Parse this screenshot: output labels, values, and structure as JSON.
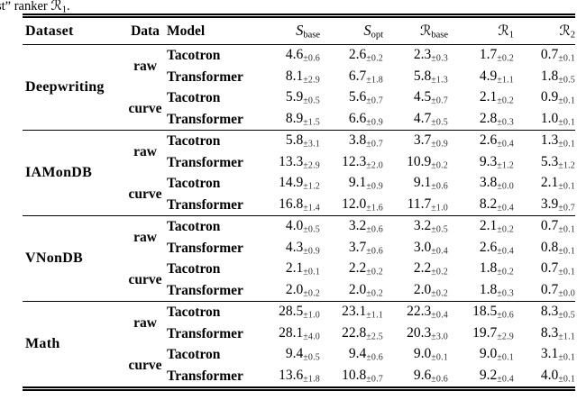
{
  "caption": {
    "prefix": "st” ranker ",
    "symbol": "ℛ",
    "sub": "1",
    "suffix": "."
  },
  "columns": [
    {
      "label": "Dataset"
    },
    {
      "label": "Data"
    },
    {
      "label": "Model"
    },
    {
      "symbol": "S",
      "sub": "base"
    },
    {
      "symbol": "S",
      "sub": "opt"
    },
    {
      "symbol": "ℛ",
      "sub": "base"
    },
    {
      "symbol": "ℛ",
      "sub": "1"
    },
    {
      "symbol": "ℛ",
      "sub": "2"
    }
  ],
  "groups": [
    {
      "dataset": "Deepwriting",
      "sections": [
        {
          "data": "raw",
          "rows": [
            {
              "model": "Tacotron",
              "values": [
                {
                  "v": "4.6",
                  "pm": "±0.6"
                },
                {
                  "v": "2.6",
                  "pm": "±0.2"
                },
                {
                  "v": "2.3",
                  "pm": "±0.3"
                },
                {
                  "v": "1.7",
                  "pm": "±0.2"
                },
                {
                  "v": "0.7",
                  "pm": "±0.1"
                }
              ]
            },
            {
              "model": "Transformer",
              "values": [
                {
                  "v": "8.1",
                  "pm": "±2.9"
                },
                {
                  "v": "6.7",
                  "pm": "±1.8"
                },
                {
                  "v": "5.8",
                  "pm": "±1.3"
                },
                {
                  "v": "4.9",
                  "pm": "±1.1"
                },
                {
                  "v": "1.8",
                  "pm": "±0.5"
                }
              ]
            }
          ]
        },
        {
          "data": "curve",
          "rows": [
            {
              "model": "Tacotron",
              "values": [
                {
                  "v": "5.9",
                  "pm": "±0.5"
                },
                {
                  "v": "5.6",
                  "pm": "±0.7"
                },
                {
                  "v": "4.5",
                  "pm": "±0.7"
                },
                {
                  "v": "2.1",
                  "pm": "±0.2"
                },
                {
                  "v": "0.9",
                  "pm": "±0.1"
                }
              ]
            },
            {
              "model": "Transformer",
              "values": [
                {
                  "v": "8.9",
                  "pm": "±1.5"
                },
                {
                  "v": "6.6",
                  "pm": "±0.9"
                },
                {
                  "v": "4.7",
                  "pm": "±0.5"
                },
                {
                  "v": "2.8",
                  "pm": "±0.3"
                },
                {
                  "v": "1.0",
                  "pm": "±0.1"
                }
              ]
            }
          ]
        }
      ]
    },
    {
      "dataset": "IAMonDB",
      "sections": [
        {
          "data": "raw",
          "rows": [
            {
              "model": "Tacotron",
              "values": [
                {
                  "v": "5.8",
                  "pm": "±3.1"
                },
                {
                  "v": "3.8",
                  "pm": "±0.7"
                },
                {
                  "v": "3.7",
                  "pm": "±0.9"
                },
                {
                  "v": "2.6",
                  "pm": "±0.4"
                },
                {
                  "v": "1.3",
                  "pm": "±0.1"
                }
              ]
            },
            {
              "model": "Transformer",
              "values": [
                {
                  "v": "13.3",
                  "pm": "±2.9"
                },
                {
                  "v": "12.3",
                  "pm": "±2.0"
                },
                {
                  "v": "10.9",
                  "pm": "±0.2"
                },
                {
                  "v": "9.3",
                  "pm": "±1.2"
                },
                {
                  "v": "5.3",
                  "pm": "±1.2"
                }
              ]
            }
          ]
        },
        {
          "data": "curve",
          "rows": [
            {
              "model": "Tacotron",
              "values": [
                {
                  "v": "14.9",
                  "pm": "±1.2"
                },
                {
                  "v": "9.1",
                  "pm": "±0.9"
                },
                {
                  "v": "9.1",
                  "pm": "±0.6"
                },
                {
                  "v": "3.8",
                  "pm": "±0.0"
                },
                {
                  "v": "2.1",
                  "pm": "±0.1"
                }
              ]
            },
            {
              "model": "Transformer",
              "values": [
                {
                  "v": "16.8",
                  "pm": "±1.4"
                },
                {
                  "v": "12.0",
                  "pm": "±1.6"
                },
                {
                  "v": "11.7",
                  "pm": "±1.0"
                },
                {
                  "v": "8.2",
                  "pm": "±0.4"
                },
                {
                  "v": "3.9",
                  "pm": "±0.7"
                }
              ]
            }
          ]
        }
      ]
    },
    {
      "dataset": "VNonDB",
      "sections": [
        {
          "data": "raw",
          "rows": [
            {
              "model": "Tacotron",
              "values": [
                {
                  "v": "4.0",
                  "pm": "±0.5"
                },
                {
                  "v": "3.2",
                  "pm": "±0.6"
                },
                {
                  "v": "3.2",
                  "pm": "±0.5"
                },
                {
                  "v": "2.1",
                  "pm": "±0.2"
                },
                {
                  "v": "0.7",
                  "pm": "±0.1"
                }
              ]
            },
            {
              "model": "Transformer",
              "values": [
                {
                  "v": "4.3",
                  "pm": "±0.9"
                },
                {
                  "v": "3.7",
                  "pm": "±0.6"
                },
                {
                  "v": "3.0",
                  "pm": "±0.4"
                },
                {
                  "v": "2.6",
                  "pm": "±0.4"
                },
                {
                  "v": "0.8",
                  "pm": "±0.1"
                }
              ]
            }
          ]
        },
        {
          "data": "curve",
          "rows": [
            {
              "model": "Tacotron",
              "values": [
                {
                  "v": "2.1",
                  "pm": "±0.1"
                },
                {
                  "v": "2.2",
                  "pm": "±0.2"
                },
                {
                  "v": "2.2",
                  "pm": "±0.2"
                },
                {
                  "v": "1.8",
                  "pm": "±0.2"
                },
                {
                  "v": "0.7",
                  "pm": "±0.1"
                }
              ]
            },
            {
              "model": "Transformer",
              "values": [
                {
                  "v": "2.0",
                  "pm": "±0.2"
                },
                {
                  "v": "2.0",
                  "pm": "±0.2"
                },
                {
                  "v": "2.0",
                  "pm": "±0.2"
                },
                {
                  "v": "1.8",
                  "pm": "±0.3"
                },
                {
                  "v": "0.7",
                  "pm": "±0.0"
                }
              ]
            }
          ]
        }
      ]
    },
    {
      "dataset": "Math",
      "sections": [
        {
          "data": "raw",
          "rows": [
            {
              "model": "Tacotron",
              "values": [
                {
                  "v": "28.5",
                  "pm": "±1.0"
                },
                {
                  "v": "23.1",
                  "pm": "±1.1"
                },
                {
                  "v": "22.3",
                  "pm": "±0.4"
                },
                {
                  "v": "18.5",
                  "pm": "±0.6"
                },
                {
                  "v": "8.3",
                  "pm": "±0.5"
                }
              ]
            },
            {
              "model": "Transformer",
              "values": [
                {
                  "v": "28.1",
                  "pm": "±4.0"
                },
                {
                  "v": "22.8",
                  "pm": "±2.5"
                },
                {
                  "v": "20.3",
                  "pm": "±3.0"
                },
                {
                  "v": "19.7",
                  "pm": "±2.9"
                },
                {
                  "v": "8.3",
                  "pm": "±1.1"
                }
              ]
            }
          ]
        },
        {
          "data": "curve",
          "rows": [
            {
              "model": "Tacotron",
              "values": [
                {
                  "v": "9.4",
                  "pm": "±0.5"
                },
                {
                  "v": "9.4",
                  "pm": "±0.6"
                },
                {
                  "v": "9.0",
                  "pm": "±0.1"
                },
                {
                  "v": "9.0",
                  "pm": "±0.1"
                },
                {
                  "v": "3.1",
                  "pm": "±0.1"
                }
              ]
            },
            {
              "model": "Transformer",
              "values": [
                {
                  "v": "13.6",
                  "pm": "±1.8"
                },
                {
                  "v": "10.8",
                  "pm": "±0.7"
                },
                {
                  "v": "9.6",
                  "pm": "±0.6"
                },
                {
                  "v": "9.2",
                  "pm": "±0.4"
                },
                {
                  "v": "4.0",
                  "pm": "±0.1"
                }
              ]
            }
          ]
        }
      ]
    }
  ]
}
